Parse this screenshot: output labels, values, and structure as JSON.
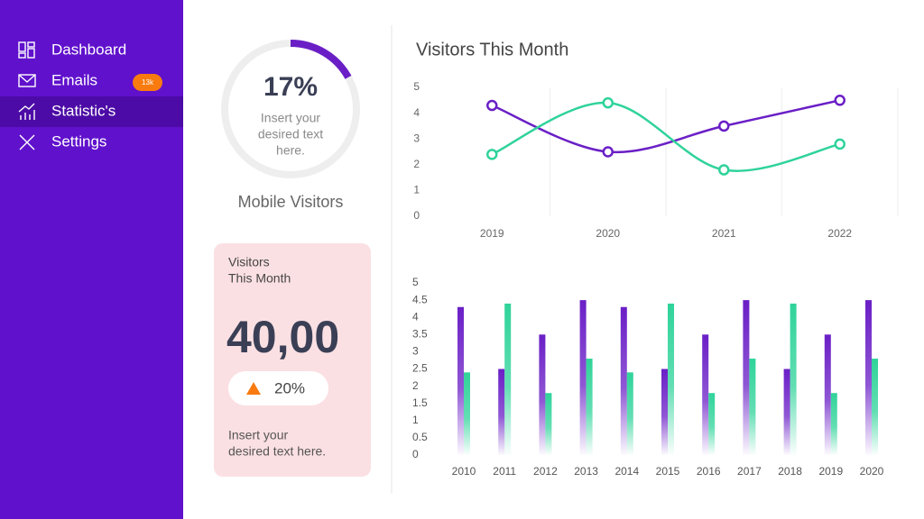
{
  "sidebar": {
    "items": [
      "Dashboard",
      "Emails",
      "Statistic's",
      "Settings"
    ],
    "badge": "13k"
  },
  "gauge": {
    "value": 17,
    "label": "17%",
    "text": [
      "Insert your",
      "desired text",
      "here."
    ],
    "caption": "Mobile Visitors"
  },
  "card": {
    "title": [
      "Visitors",
      "This Month"
    ],
    "value": "40,00",
    "change": "20%",
    "text": [
      "Insert your",
      "desired text here."
    ]
  },
  "chart_data": [
    {
      "type": "line",
      "title": "Visitors This Month",
      "categories": [
        "2019",
        "2020",
        "2021",
        "2022"
      ],
      "series": [
        {
          "color": "#6a1fc6",
          "values": [
            4.3,
            2.5,
            3.5,
            4.5
          ]
        },
        {
          "color": "#2fd39a",
          "values": [
            2.4,
            4.4,
            1.8,
            2.8
          ]
        }
      ],
      "ylim": [
        0,
        5
      ],
      "yticks": [
        0,
        1,
        2,
        3,
        4,
        5
      ],
      "grid": true
    },
    {
      "type": "bar",
      "categories": [
        "2010",
        "2011",
        "2012",
        "2013",
        "2014",
        "2015",
        "2016",
        "2017",
        "2018",
        "2019",
        "2020"
      ],
      "series": [
        {
          "color": "#6a1fc6",
          "values": [
            4.3,
            2.5,
            3.5,
            4.5,
            4.3,
            2.5,
            3.5,
            4.5,
            2.5,
            3.5,
            4.5
          ]
        },
        {
          "color": "#2fd39a",
          "values": [
            2.4,
            4.4,
            1.8,
            2.8,
            2.4,
            4.4,
            1.8,
            2.8,
            4.4,
            1.8,
            2.8
          ]
        }
      ],
      "ylim": [
        0,
        5
      ],
      "yticks": [
        0,
        0.5,
        1,
        1.5,
        2,
        2.5,
        3,
        3.5,
        4,
        4.5,
        5
      ],
      "grid": false
    }
  ]
}
